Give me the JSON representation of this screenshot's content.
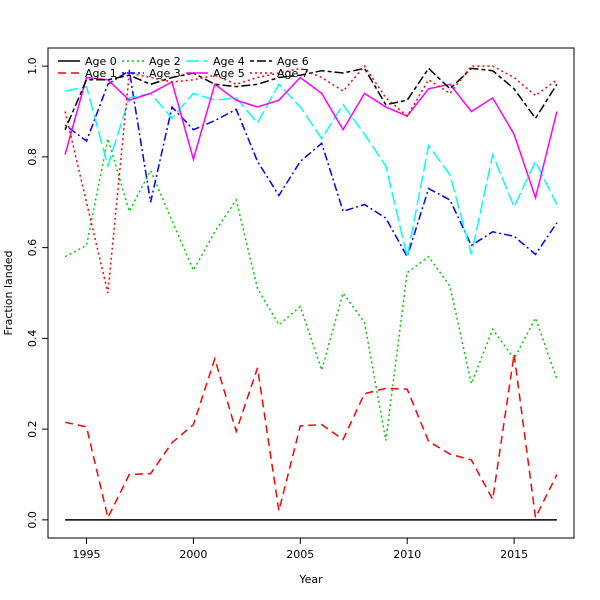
{
  "chart_data": {
    "type": "line",
    "title": "",
    "xlabel": "Year",
    "ylabel": "Fraction landed",
    "xlim": [
      1993.2,
      2017.8
    ],
    "ylim": [
      -0.04,
      1.04
    ],
    "xticks": [
      1995,
      2000,
      2005,
      2010,
      2015
    ],
    "yticks": [
      0.0,
      0.2,
      0.4,
      0.6,
      0.8,
      1.0
    ],
    "xtick_labels": [
      "1995",
      "2000",
      "2005",
      "2010",
      "2015"
    ],
    "ytick_labels": [
      "0.0",
      "0.2",
      "0.4",
      "0.6",
      "0.8",
      "1.0"
    ],
    "grid": false,
    "legend_position": "top-left",
    "x": [
      1994,
      1995,
      1996,
      1997,
      1998,
      1999,
      2000,
      2001,
      2002,
      2003,
      2004,
      2005,
      2006,
      2007,
      2008,
      2009,
      2010,
      2011,
      2012,
      2013,
      2014,
      2015,
      2016,
      2017
    ],
    "series": [
      {
        "name": "Age 0",
        "color": "#000000",
        "dash": "solid",
        "values": [
          0.0,
          0.0,
          0.0,
          0.0,
          0.0,
          0.0,
          0.0,
          0.0,
          0.0,
          0.0,
          0.0,
          0.0,
          0.0,
          0.0,
          0.0,
          0.0,
          0.0,
          0.0,
          0.0,
          0.0,
          0.0,
          0.0,
          0.0,
          0.0
        ]
      },
      {
        "name": "Age 1",
        "color": "#ff0000",
        "dash": "dashed",
        "values": [
          0.215,
          0.205,
          0.005,
          0.1,
          0.102,
          0.17,
          0.21,
          0.355,
          0.195,
          0.335,
          0.02,
          0.207,
          0.21,
          0.177,
          0.278,
          0.29,
          0.288,
          0.173,
          0.145,
          0.132,
          0.045,
          0.365,
          0.005,
          0.1
        ]
      },
      {
        "name": "Age 2",
        "color": "#00cd00",
        "dash": "dotted",
        "values": [
          0.58,
          0.605,
          0.84,
          0.68,
          0.77,
          0.66,
          0.55,
          0.635,
          0.705,
          0.51,
          0.43,
          0.47,
          0.33,
          0.5,
          0.435,
          0.175,
          0.545,
          0.58,
          0.515,
          0.3,
          0.42,
          0.355,
          0.445,
          0.31
        ]
      },
      {
        "name": "Age 3",
        "color": "#0000ff",
        "dash": "dotdash",
        "values": [
          0.87,
          0.835,
          0.96,
          0.99,
          0.7,
          0.91,
          0.86,
          0.88,
          0.905,
          0.79,
          0.715,
          0.79,
          0.83,
          0.68,
          0.695,
          0.665,
          0.58,
          0.73,
          0.705,
          0.605,
          0.635,
          0.625,
          0.585,
          0.655
        ]
      },
      {
        "name": "Age 4",
        "color": "#00ffff",
        "dash": "longdash",
        "values": [
          0.945,
          0.955,
          0.78,
          0.93,
          0.94,
          0.885,
          0.94,
          0.925,
          0.93,
          0.875,
          0.96,
          0.91,
          0.84,
          0.915,
          0.85,
          0.78,
          0.58,
          0.825,
          0.76,
          0.585,
          0.805,
          0.69,
          0.79,
          0.695
        ]
      },
      {
        "name": "Age 5",
        "color": "#ff00ff",
        "dash": "solid",
        "values": [
          0.805,
          0.975,
          0.97,
          0.925,
          0.94,
          0.965,
          0.795,
          0.96,
          0.925,
          0.91,
          0.925,
          0.975,
          0.94,
          0.86,
          0.94,
          0.91,
          0.89,
          0.95,
          0.96,
          0.9,
          0.93,
          0.85,
          0.71,
          0.9
        ]
      },
      {
        "name": "Age 6",
        "color": "#000000",
        "dash": "twodash",
        "values": [
          0.86,
          0.97,
          0.97,
          0.98,
          0.96,
          0.975,
          0.985,
          0.96,
          0.955,
          0.96,
          0.975,
          0.98,
          0.99,
          0.985,
          0.995,
          0.915,
          0.925,
          0.995,
          0.95,
          0.995,
          0.99,
          0.95,
          0.885,
          0.96
        ]
      },
      {
        "name": "Age 7",
        "color": "#ff0000",
        "dash": "dotted",
        "values": [
          0.9,
          0.7,
          0.5,
          0.985,
          0.975,
          0.965,
          0.97,
          0.98,
          0.96,
          0.975,
          0.985,
          0.995,
          0.975,
          0.945,
          1.0,
          0.93,
          0.89,
          0.97,
          0.94,
          1.0,
          1.0,
          0.975,
          0.935,
          0.97
        ]
      }
    ]
  }
}
